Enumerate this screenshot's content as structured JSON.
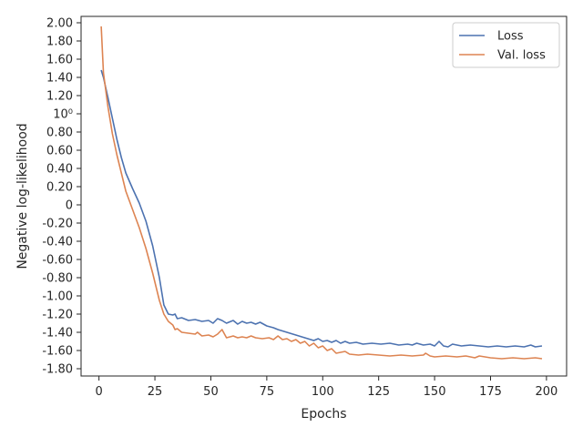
{
  "chart_data": {
    "type": "line",
    "title": "",
    "xlabel": "Epochs",
    "ylabel": "Negative log-likelihood",
    "xlim": [
      -8,
      209
    ],
    "ylim": [
      -1.88,
      2.07
    ],
    "x_ticks": [
      0,
      25,
      50,
      75,
      100,
      125,
      150,
      175,
      200
    ],
    "y_ticks": [
      2.0,
      1.8,
      1.6,
      1.4,
      1.2,
      1.0,
      0.8,
      0.6,
      0.4,
      0.2,
      0,
      -0.2,
      -0.4,
      -0.6,
      -0.8,
      -1.0,
      -1.2,
      -1.4,
      -1.6,
      -1.8
    ],
    "y_tick_labels": [
      "2.00",
      "1.80",
      "1.60",
      "1.40",
      "1.20",
      "10⁰",
      "0.80",
      "0.60",
      "0.40",
      "0.20",
      "0",
      "-0.20",
      "-0.40",
      "-0.60",
      "-0.80",
      "-1.00",
      "-1.20",
      "-1.40",
      "-1.60",
      "-1.80"
    ],
    "grid": false,
    "legend_position": "top-right",
    "series": [
      {
        "name": "Loss",
        "color": "#4c72b0",
        "points": [
          [
            1,
            1.48
          ],
          [
            2,
            1.4
          ],
          [
            4,
            1.18
          ],
          [
            6,
            0.95
          ],
          [
            8,
            0.72
          ],
          [
            10,
            0.52
          ],
          [
            12,
            0.35
          ],
          [
            15,
            0.18
          ],
          [
            18,
            0.02
          ],
          [
            21,
            -0.18
          ],
          [
            24,
            -0.45
          ],
          [
            27,
            -0.8
          ],
          [
            29,
            -1.1
          ],
          [
            31,
            -1.2
          ],
          [
            33,
            -1.21
          ],
          [
            34,
            -1.2
          ],
          [
            35,
            -1.25
          ],
          [
            37,
            -1.24
          ],
          [
            40,
            -1.27
          ],
          [
            43,
            -1.26
          ],
          [
            46,
            -1.28
          ],
          [
            49,
            -1.27
          ],
          [
            51,
            -1.3
          ],
          [
            53,
            -1.25
          ],
          [
            55,
            -1.27
          ],
          [
            57,
            -1.3
          ],
          [
            60,
            -1.27
          ],
          [
            62,
            -1.31
          ],
          [
            64,
            -1.28
          ],
          [
            66,
            -1.3
          ],
          [
            68,
            -1.29
          ],
          [
            70,
            -1.31
          ],
          [
            72,
            -1.29
          ],
          [
            75,
            -1.33
          ],
          [
            78,
            -1.35
          ],
          [
            80,
            -1.37
          ],
          [
            84,
            -1.4
          ],
          [
            88,
            -1.43
          ],
          [
            92,
            -1.46
          ],
          [
            96,
            -1.49
          ],
          [
            98,
            -1.47
          ],
          [
            100,
            -1.5
          ],
          [
            102,
            -1.49
          ],
          [
            104,
            -1.51
          ],
          [
            106,
            -1.49
          ],
          [
            108,
            -1.52
          ],
          [
            110,
            -1.5
          ],
          [
            112,
            -1.52
          ],
          [
            115,
            -1.51
          ],
          [
            118,
            -1.53
          ],
          [
            122,
            -1.52
          ],
          [
            126,
            -1.53
          ],
          [
            130,
            -1.52
          ],
          [
            134,
            -1.54
          ],
          [
            138,
            -1.53
          ],
          [
            140,
            -1.54
          ],
          [
            142,
            -1.52
          ],
          [
            145,
            -1.54
          ],
          [
            148,
            -1.53
          ],
          [
            150,
            -1.55
          ],
          [
            152,
            -1.5
          ],
          [
            154,
            -1.55
          ],
          [
            156,
            -1.56
          ],
          [
            158,
            -1.53
          ],
          [
            162,
            -1.55
          ],
          [
            166,
            -1.54
          ],
          [
            170,
            -1.55
          ],
          [
            174,
            -1.56
          ],
          [
            178,
            -1.55
          ],
          [
            182,
            -1.56
          ],
          [
            186,
            -1.55
          ],
          [
            190,
            -1.56
          ],
          [
            193,
            -1.54
          ],
          [
            195,
            -1.56
          ],
          [
            198,
            -1.55
          ]
        ]
      },
      {
        "name": "Val. loss",
        "color": "#dd8452",
        "points": [
          [
            1,
            1.96
          ],
          [
            2,
            1.45
          ],
          [
            4,
            1.08
          ],
          [
            6,
            0.78
          ],
          [
            8,
            0.55
          ],
          [
            10,
            0.35
          ],
          [
            12,
            0.15
          ],
          [
            15,
            -0.05
          ],
          [
            18,
            -0.25
          ],
          [
            21,
            -0.48
          ],
          [
            24,
            -0.75
          ],
          [
            27,
            -1.05
          ],
          [
            29,
            -1.2
          ],
          [
            31,
            -1.28
          ],
          [
            33,
            -1.32
          ],
          [
            34,
            -1.37
          ],
          [
            35,
            -1.36
          ],
          [
            37,
            -1.4
          ],
          [
            40,
            -1.41
          ],
          [
            43,
            -1.42
          ],
          [
            44,
            -1.4
          ],
          [
            46,
            -1.44
          ],
          [
            49,
            -1.43
          ],
          [
            51,
            -1.45
          ],
          [
            53,
            -1.42
          ],
          [
            55,
            -1.37
          ],
          [
            57,
            -1.46
          ],
          [
            60,
            -1.44
          ],
          [
            62,
            -1.46
          ],
          [
            64,
            -1.45
          ],
          [
            66,
            -1.46
          ],
          [
            68,
            -1.44
          ],
          [
            70,
            -1.46
          ],
          [
            73,
            -1.47
          ],
          [
            76,
            -1.46
          ],
          [
            78,
            -1.48
          ],
          [
            80,
            -1.44
          ],
          [
            82,
            -1.48
          ],
          [
            84,
            -1.47
          ],
          [
            86,
            -1.5
          ],
          [
            88,
            -1.48
          ],
          [
            90,
            -1.52
          ],
          [
            92,
            -1.5
          ],
          [
            94,
            -1.55
          ],
          [
            96,
            -1.52
          ],
          [
            98,
            -1.57
          ],
          [
            100,
            -1.55
          ],
          [
            102,
            -1.6
          ],
          [
            104,
            -1.58
          ],
          [
            106,
            -1.63
          ],
          [
            110,
            -1.61
          ],
          [
            112,
            -1.64
          ],
          [
            116,
            -1.65
          ],
          [
            120,
            -1.64
          ],
          [
            125,
            -1.65
          ],
          [
            130,
            -1.66
          ],
          [
            135,
            -1.65
          ],
          [
            140,
            -1.66
          ],
          [
            145,
            -1.65
          ],
          [
            146,
            -1.63
          ],
          [
            148,
            -1.66
          ],
          [
            150,
            -1.67
          ],
          [
            155,
            -1.66
          ],
          [
            160,
            -1.67
          ],
          [
            164,
            -1.66
          ],
          [
            168,
            -1.68
          ],
          [
            170,
            -1.66
          ],
          [
            175,
            -1.68
          ],
          [
            180,
            -1.69
          ],
          [
            185,
            -1.68
          ],
          [
            190,
            -1.69
          ],
          [
            195,
            -1.68
          ],
          [
            198,
            -1.69
          ]
        ]
      }
    ]
  },
  "colors": {
    "axes": "#262626",
    "background": "#ffffff"
  }
}
